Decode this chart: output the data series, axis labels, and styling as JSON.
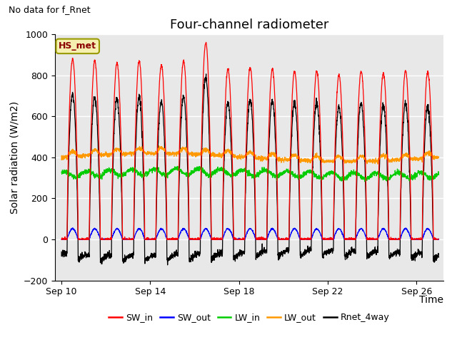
{
  "title": "Four-channel radiometer",
  "top_left_text": "No data for f_Rnet",
  "ylabel": "Solar radiation (W/m2)",
  "xlabel": "Time",
  "ylim": [
    -200,
    1000
  ],
  "yticks": [
    -200,
    0,
    200,
    400,
    600,
    800,
    1000
  ],
  "xtick_labels": [
    "Sep 10",
    "Sep 14",
    "Sep 18",
    "Sep 22",
    "Sep 26"
  ],
  "xtick_positions": [
    0,
    4,
    8,
    12,
    16
  ],
  "legend_labels": [
    "SW_in",
    "SW_out",
    "LW_in",
    "LW_out",
    "Rnet_4way"
  ],
  "legend_colors": [
    "#ff0000",
    "#0000ff",
    "#00cc00",
    "#ff9900",
    "#000000"
  ],
  "box_label": "HS_met",
  "plot_bg_color": "#e8e8e8",
  "fig_bg_color": "#ffffff",
  "n_days": 17,
  "title_fontsize": 13,
  "tick_fontsize": 9,
  "label_fontsize": 10
}
